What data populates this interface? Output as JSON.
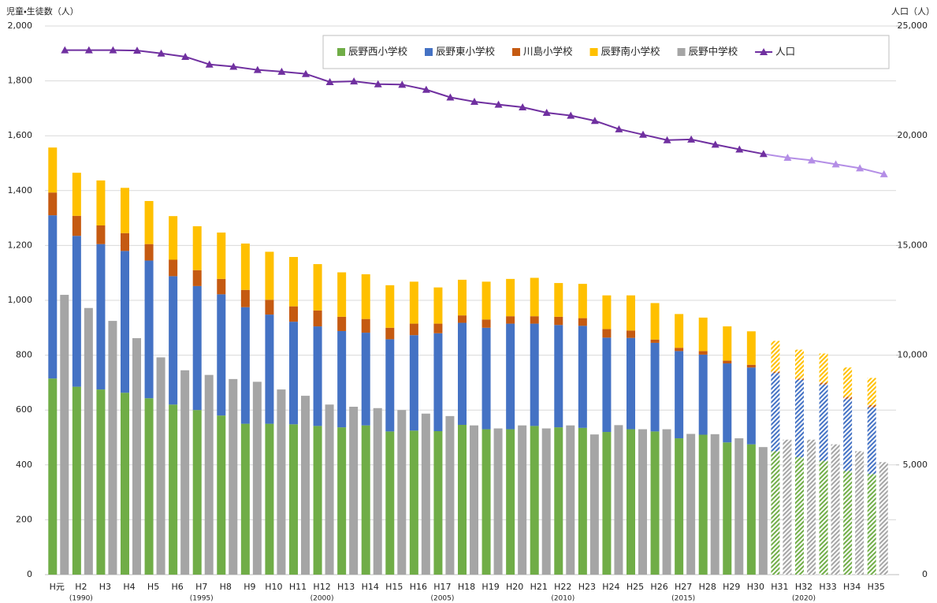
{
  "chart_data": {
    "type": "bar",
    "y_axis_label": "児童・生徒数（人）",
    "y2_axis_label": "人口（人）",
    "categories": [
      "H元",
      "H2",
      "H3",
      "H4",
      "H5",
      "H6",
      "H7",
      "H8",
      "H9",
      "H10",
      "H11",
      "H12",
      "H13",
      "H14",
      "H15",
      "H16",
      "H17",
      "H18",
      "H19",
      "H20",
      "H21",
      "H22",
      "H23",
      "H24",
      "H25",
      "H26",
      "H27",
      "H28",
      "H29",
      "H30",
      "H31",
      "H32",
      "H33",
      "H34",
      "H35"
    ],
    "category_sublabels": [
      null,
      "(1990)",
      null,
      null,
      null,
      null,
      "(1995)",
      null,
      null,
      null,
      null,
      "(2000)",
      null,
      null,
      null,
      null,
      "(2005)",
      null,
      null,
      null,
      null,
      "(2010)",
      null,
      null,
      null,
      null,
      "(2015)",
      null,
      null,
      null,
      null,
      "(2020)",
      null,
      null,
      null
    ],
    "projected_from": "H31",
    "series": [
      {
        "name": "辰野西小学校",
        "color": "#70ad47",
        "stacked": true,
        "values": [
          715,
          685,
          675,
          663,
          643,
          620,
          600,
          580,
          550,
          550,
          548,
          542,
          537,
          544,
          522,
          525,
          523,
          546,
          530,
          530,
          542,
          537,
          535,
          520,
          530,
          522,
          497,
          510,
          482,
          475,
          450,
          428,
          415,
          378,
          367
        ]
      },
      {
        "name": "辰野東小学校",
        "color": "#4472c4",
        "stacked": true,
        "values": [
          595,
          550,
          530,
          517,
          502,
          468,
          452,
          442,
          425,
          398,
          374,
          363,
          351,
          338,
          336,
          348,
          357,
          372,
          370,
          385,
          373,
          373,
          372,
          344,
          333,
          323,
          318,
          292,
          288,
          280,
          285,
          282,
          278,
          262,
          243
        ]
      },
      {
        "name": "川島小学校",
        "color": "#c55a11",
        "stacked": true,
        "values": [
          83,
          73,
          68,
          65,
          60,
          60,
          58,
          56,
          63,
          54,
          56,
          58,
          52,
          50,
          42,
          42,
          35,
          27,
          30,
          27,
          27,
          30,
          28,
          31,
          27,
          12,
          12,
          13,
          10,
          10,
          5,
          5,
          7,
          8,
          8
        ]
      },
      {
        "name": "辰野南小学校",
        "color": "#ffc000",
        "stacked": true,
        "values": [
          164,
          157,
          164,
          165,
          157,
          159,
          160,
          169,
          169,
          175,
          180,
          169,
          162,
          163,
          155,
          153,
          132,
          130,
          138,
          136,
          140,
          123,
          125,
          123,
          128,
          133,
          123,
          122,
          125,
          122,
          112,
          105,
          106,
          107,
          99
        ]
      },
      {
        "name": "辰野中学校",
        "color": "#a5a5a5",
        "stacked": false,
        "values": [
          1020,
          972,
          925,
          862,
          792,
          745,
          728,
          713,
          703,
          675,
          652,
          620,
          612,
          607,
          600,
          587,
          578,
          544,
          533,
          544,
          533,
          544,
          511,
          545,
          530,
          530,
          513,
          512,
          497,
          465,
          492,
          492,
          475,
          450,
          410
        ]
      },
      {
        "name": "人口",
        "color": "#7030a0",
        "projected_color": "#b48ee6",
        "type": "line",
        "axis": "y2",
        "values": [
          23900,
          23900,
          23900,
          23880,
          23750,
          23600,
          23250,
          23150,
          23000,
          22920,
          22820,
          22450,
          22480,
          22350,
          22330,
          22100,
          21750,
          21550,
          21420,
          21300,
          21050,
          20920,
          20680,
          20300,
          20050,
          19800,
          19830,
          19600,
          19380,
          19170,
          19000,
          18880,
          18700,
          18520,
          18250
        ]
      }
    ],
    "ylim": [
      0,
      2000
    ],
    "yticks": [
      0,
      200,
      400,
      600,
      800,
      {
        "value": 1000,
        "label": "1,000"
      },
      {
        "value": 1200,
        "label": "1,200"
      },
      {
        "value": 1400,
        "label": "1,400"
      },
      {
        "value": 1600,
        "label": "1,600"
      },
      {
        "value": 1800,
        "label": "1,800"
      },
      {
        "value": 2000,
        "label": "2,000"
      }
    ],
    "y2lim": [
      0,
      25000
    ],
    "y2ticks": [
      0,
      {
        "value": 5000,
        "label": "5,000"
      },
      {
        "value": 10000,
        "label": "10,000"
      },
      {
        "value": 15000,
        "label": "15,000"
      },
      {
        "value": 20000,
        "label": "20,000"
      },
      {
        "value": 25000,
        "label": "25,000"
      }
    ],
    "grid": true,
    "legend": "top-right"
  }
}
